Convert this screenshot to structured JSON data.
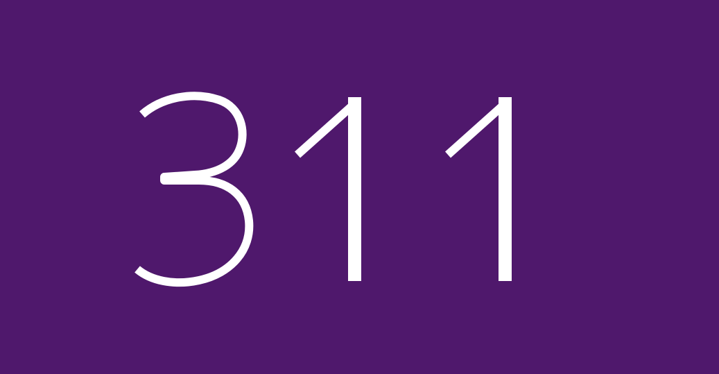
{
  "number": {
    "value": "311"
  },
  "colors": {
    "background": "#4f186c",
    "text": "#ffffff"
  }
}
